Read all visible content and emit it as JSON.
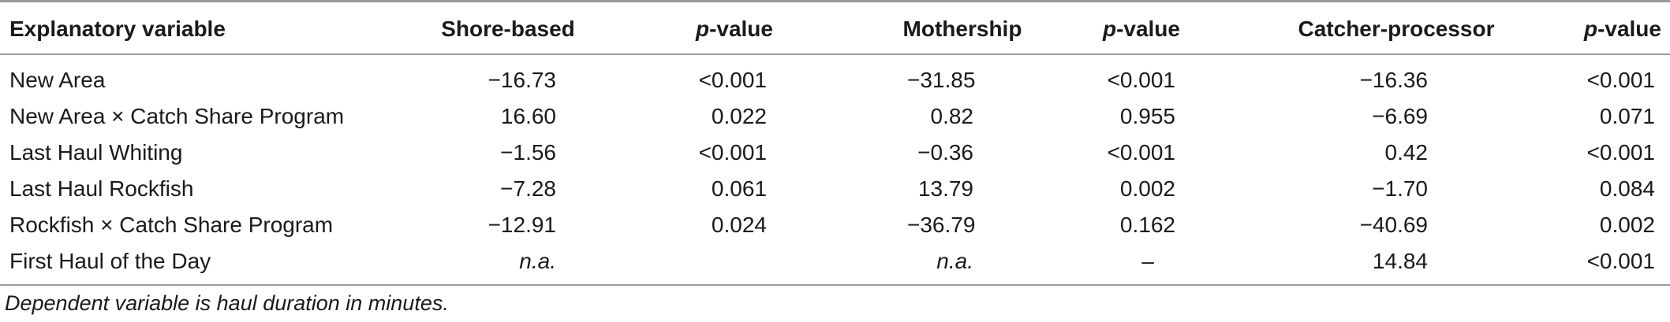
{
  "table": {
    "headers": {
      "explanatory": "Explanatory variable",
      "shore": "Shore-based",
      "p1_letter": "p",
      "p1_suffix": "-value",
      "mothership": "Mothership",
      "p2_letter": "p",
      "p2_suffix": "-value",
      "catcher": "Catcher-processor",
      "p3_letter": "p",
      "p3_suffix": "-value"
    },
    "rows": [
      {
        "label": "New Area",
        "shore": "−16.73",
        "p1": "<0.001",
        "mothership": "−31.85",
        "p2": "<0.001",
        "catcher": "−16.36",
        "p3": "<0.001"
      },
      {
        "label": "New Area × Catch Share Program",
        "shore": "16.60",
        "p1": "0.022",
        "mothership": "0.82",
        "p2": "0.955",
        "catcher": "−6.69",
        "p3": "0.071"
      },
      {
        "label": "Last Haul Whiting",
        "shore": "−1.56",
        "p1": "<0.001",
        "mothership": "−0.36",
        "p2": "<0.001",
        "catcher": "0.42",
        "p3": "<0.001"
      },
      {
        "label": "Last Haul Rockfish",
        "shore": "−7.28",
        "p1": "0.061",
        "mothership": "13.79",
        "p2": "0.002",
        "catcher": "−1.70",
        "p3": "0.084"
      },
      {
        "label": "Rockfish × Catch Share Program",
        "shore": "−12.91",
        "p1": "0.024",
        "mothership": "−36.79",
        "p2": "0.162",
        "catcher": "−40.69",
        "p3": "0.002"
      },
      {
        "label": "First Haul of the Day",
        "shore": "n.a.",
        "p1": "",
        "mothership": "n.a.",
        "p2": "–",
        "catcher": "14.84",
        "p3": "<0.001"
      }
    ]
  },
  "footnote": "Dependent variable is haul duration in minutes."
}
